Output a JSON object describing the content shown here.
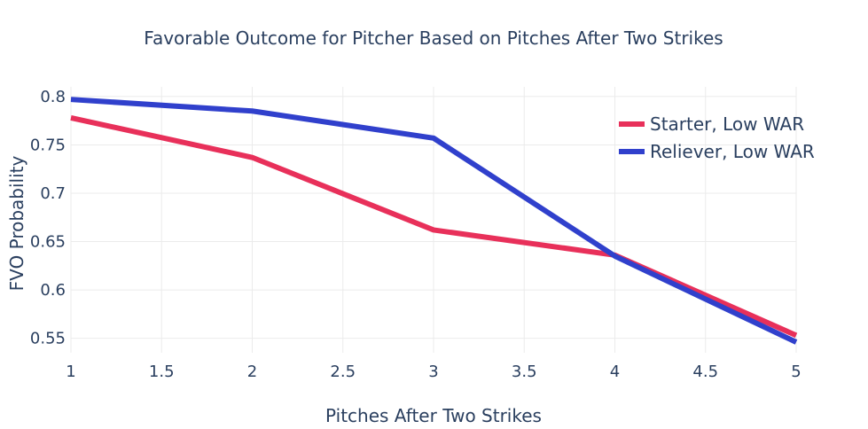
{
  "chart_data": {
    "type": "line",
    "title": "Favorable Outcome for Pitcher Based on Pitches After Two Strikes",
    "xlabel": "Pitches After Two Strikes",
    "ylabel": "FVO Probability",
    "x": [
      1,
      2,
      3,
      4,
      5
    ],
    "xlim": [
      1,
      5
    ],
    "ylim": [
      0.535,
      0.81
    ],
    "xticks": [
      "1",
      "1.5",
      "2",
      "2.5",
      "3",
      "3.5",
      "4",
      "4.5",
      "5"
    ],
    "yticks": [
      "0.55",
      "0.6",
      "0.65",
      "0.7",
      "0.75",
      "0.8"
    ],
    "grid": true,
    "legend_position": "top-right",
    "series": [
      {
        "name": "Starter, Low WAR",
        "color": "#e8305a",
        "values": [
          0.778,
          0.737,
          0.662,
          0.636,
          0.553
        ]
      },
      {
        "name": "Reliever, Low WAR",
        "color": "#3040cc",
        "values": [
          0.797,
          0.785,
          0.757,
          0.635,
          0.546
        ]
      }
    ]
  }
}
